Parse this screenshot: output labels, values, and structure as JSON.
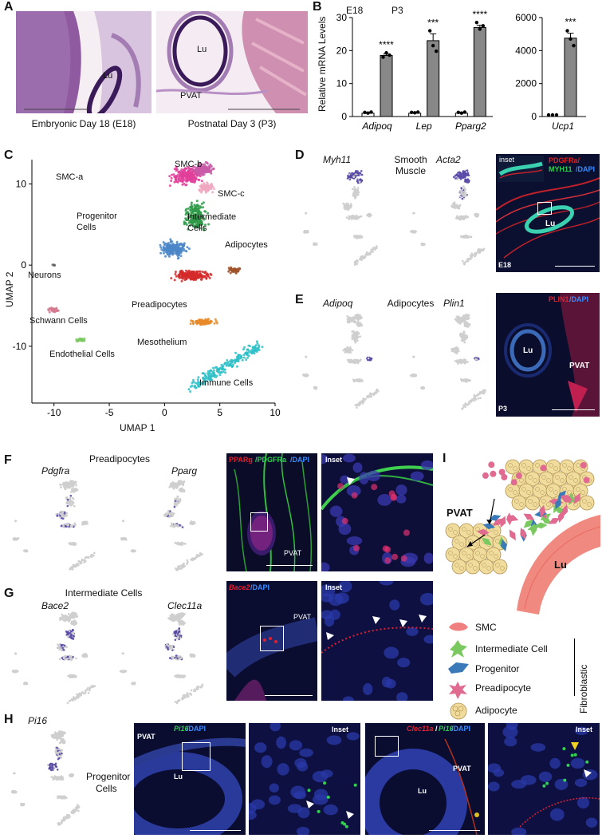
{
  "panels": {
    "A": "A",
    "B": "B",
    "C": "C",
    "D": "D",
    "E": "E",
    "F": "F",
    "G": "G",
    "H": "H",
    "I": "I"
  },
  "panelA": {
    "left_caption": "Embryonic Day 18 (E18)",
    "right_caption": "Postnatal Day 3 (P3)",
    "lu_left": "Lu",
    "lu_right": "Lu",
    "pvat": "PVAT"
  },
  "chart_data": [
    {
      "type": "bar",
      "categories": [
        "Adipoq",
        "Lep",
        "Pparg2"
      ],
      "series": [
        {
          "name": "E18",
          "values": [
            1,
            1,
            1
          ]
        },
        {
          "name": "P3",
          "values": [
            18.5,
            23,
            27
          ]
        }
      ],
      "points": {
        "E18": [
          [
            1.0,
            0.8,
            1.1
          ],
          [
            1.0,
            0.9,
            1.1
          ],
          [
            1.0,
            0.8,
            1.1
          ]
        ],
        "P3": [
          [
            18.0,
            19.3,
            18.6
          ],
          [
            26.0,
            21.5,
            19.8
          ],
          [
            28.5,
            26.5,
            27.5
          ]
        ]
      },
      "significance": [
        "****",
        "***",
        "****"
      ],
      "ylabel": "Relative mRNA Levels",
      "ylim": [
        0,
        30
      ],
      "yticks": [
        0,
        10,
        20,
        30
      ],
      "legend_position": "top"
    },
    {
      "type": "bar",
      "categories": [
        "Ucp1"
      ],
      "series": [
        {
          "name": "E18",
          "values": [
            1
          ]
        },
        {
          "name": "P3",
          "values": [
            4750
          ]
        }
      ],
      "points": {
        "E18": [
          [
            1,
            1,
            1
          ]
        ],
        "P3": [
          [
            5200,
            4700,
            4300
          ]
        ]
      },
      "significance": [
        "***"
      ],
      "ylim": [
        0,
        6000
      ],
      "yticks": [
        0,
        2000,
        4000,
        6000
      ]
    },
    {
      "type": "scatter",
      "xlabel": "UMAP 1",
      "ylabel": "UMAP 2",
      "xlim": [
        -12,
        10
      ],
      "ylim": [
        -17,
        13
      ],
      "xticks": [
        -10,
        -5,
        0,
        5,
        10
      ],
      "yticks": [
        -10,
        0,
        10
      ],
      "clusters": [
        {
          "name": "SMC-a",
          "color": "#e0409a",
          "cx": 2.0,
          "cy": 11.0
        },
        {
          "name": "SMC-b",
          "color": "#c85aa8",
          "cx": 3.5,
          "cy": 11.8
        },
        {
          "name": "SMC-c",
          "color": "#f0a8c0",
          "cx": 3.8,
          "cy": 9.5
        },
        {
          "name": "Intermediate Cells",
          "color": "#2e9a48",
          "cx": 2.8,
          "cy": 6.0
        },
        {
          "name": "Progenitor Cells",
          "color": "#4a86c8",
          "cx": 0.8,
          "cy": 2.0
        },
        {
          "name": "Preadipocytes",
          "color": "#d42a2a",
          "cx": 2.5,
          "cy": -1.3
        },
        {
          "name": "Adipocytes",
          "color": "#a0542a",
          "cx": 6.3,
          "cy": -0.6
        },
        {
          "name": "Mesothelium",
          "color": "#e88a2a",
          "cx": 3.5,
          "cy": -7.0
        },
        {
          "name": "Immune Cells",
          "color": "#2ec0c8",
          "cx": 5.0,
          "cy": -12.0
        },
        {
          "name": "Neurons",
          "color": "#666666",
          "cx": -10.0,
          "cy": 0.0
        },
        {
          "name": "Schwann Cells",
          "color": "#d47a90",
          "cx": -10.0,
          "cy": -5.5
        },
        {
          "name": "Endothelial Cells",
          "color": "#7ac860",
          "cx": -7.6,
          "cy": -9.2
        }
      ]
    }
  ],
  "panelC_labels": {
    "smca": "SMC-a",
    "smcb": "SMC-b",
    "smcc": "SMC-c",
    "inter1": "Intermediate",
    "inter2": "Cells",
    "prog1": "Progenitor",
    "prog2": "Cells",
    "adipo": "Adipocytes",
    "neurons": "Neurons",
    "pread": "Preadipocytes",
    "schwann": "Schwann Cells",
    "meso": "Mesothelium",
    "endo": "Endothelial Cells",
    "immune": "Immune Cells"
  },
  "panelD": {
    "gene1": "Myh11",
    "gene2": "Acta2",
    "title1": "Smooth",
    "title2": "Muscle",
    "stain_pdgfra": "PDGFRa/",
    "stain_myh11": "MYH11",
    "stain_dapi": "/DAPI",
    "inset": "inset",
    "lu": "Lu",
    "stage": "E18"
  },
  "panelE": {
    "gene1": "Adipoq",
    "gene2": "Plin1",
    "title": "Adipocytes",
    "stain_plin1": "PLIN1",
    "stain_dapi": "/DAPI",
    "lu": "Lu",
    "pvat": "PVAT",
    "stage": "P3"
  },
  "panelF": {
    "title": "Preadipocytes",
    "gene1": "Pdgfra",
    "gene2": "Pparg",
    "stain_pparg": "PPARg",
    "stain_pdgfra": "/PDGFRa",
    "stain_dapi": "/DAPI",
    "pvat": "PVAT",
    "inset": "Inset"
  },
  "panelG": {
    "title": "Intermediate Cells",
    "gene1": "Bace2",
    "gene2": "Clec11a",
    "stain_bace2": "Bace2",
    "stain_dapi": "/DAPI",
    "pvat": "PVAT",
    "inset": "Inset"
  },
  "panelH": {
    "gene": "Pi16",
    "title1": "Progenitor",
    "title2": "Cells",
    "stain1_pi16": "Pi16",
    "stain1_dapi": "/DAPI",
    "pvat": "PVAT",
    "lu": "Lu",
    "inset": "Inset",
    "stain2_clec": "Clec11a",
    "stain2_slash": "/",
    "stain2_pi16": "Pi16",
    "stain2_dapi": "/DAPI",
    "pvat2": "PVAT",
    "lu2": "Lu",
    "inset2": "Inset"
  },
  "panelI": {
    "pvat": "PVAT",
    "lu": "Lu",
    "legend": [
      "SMC",
      "Intermediate Cell",
      "Progenitor",
      "Preadipocyte",
      "Adipocyte"
    ],
    "bracket": "Fibroblastic"
  },
  "colors": {
    "smc": "#f08080",
    "intermediate": "#7ac860",
    "progenitor": "#3a7ab8",
    "preadipocyte": "#e06a90",
    "adipocyte": "#f0dc9c",
    "umap_grey": "#cfcfcf",
    "expr": "#5a4aa8"
  }
}
